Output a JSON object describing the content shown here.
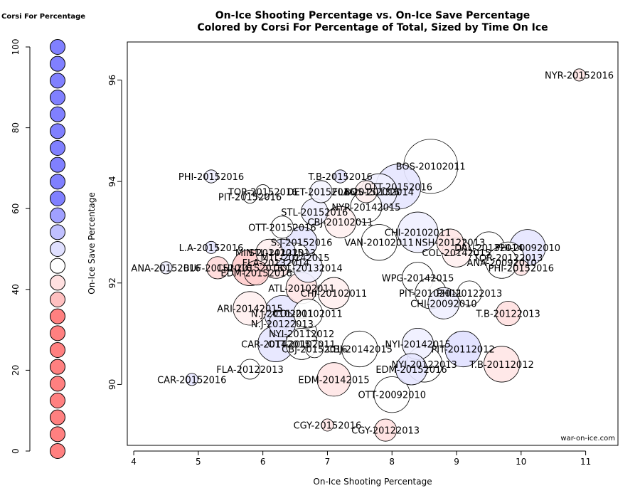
{
  "chart_data": {
    "type": "scatter",
    "title_line1": "On-Ice Shooting Percentage vs. On-Ice Save Percentage",
    "title_line2": "Colored by Corsi For Percentage of Total, Sized by Time On Ice",
    "xlabel": "On-Ice Shooting Percentage",
    "ylabel": "On-Ice Save Percentage",
    "xlim": [
      3.9,
      11.5
    ],
    "ylim": [
      88.8,
      96.75
    ],
    "xticks": [
      "4",
      "5",
      "6",
      "7",
      "8",
      "9",
      "10",
      "11"
    ],
    "yticks": [
      "90",
      "92",
      "94",
      "96"
    ],
    "credit": "war-on-ice.com",
    "legend": {
      "title": "Corsi For Percentage",
      "ticks": [
        "0",
        "20",
        "40",
        "60",
        "80",
        "100"
      ],
      "colors": [
        "#ff8080",
        "#ff8080",
        "#ff8080",
        "#ff8080",
        "#ff8080",
        "#ff8080",
        "#ff8080",
        "#ff8080",
        "#ff8080",
        "#ffc0c0",
        "#ffe0e0",
        "#ffffff",
        "#e0e0ff",
        "#c0c0ff",
        "#a0a0ff",
        "#8080ff",
        "#8080ff",
        "#8080ff",
        "#8080ff",
        "#8080ff",
        "#8080ff",
        "#8080ff",
        "#8080ff",
        "#8080ff",
        "#8080ff"
      ]
    },
    "points": [
      {
        "label": "NYR-20152016",
        "x": 10.9,
        "y": 96.1,
        "size": 0.08,
        "color": "#ffe6e6"
      },
      {
        "label": "BOS-20102011",
        "x": 8.6,
        "y": 94.3,
        "size": 1.0,
        "color": "#ffffff"
      },
      {
        "label": "OTT-20152016",
        "x": 8.1,
        "y": 93.9,
        "size": 0.8,
        "color": "#e6e6ff"
      },
      {
        "label": "BOS-20132014",
        "x": 7.8,
        "y": 93.8,
        "size": 0.6,
        "color": "#f0f0ff"
      },
      {
        "label": "PHI-20152016",
        "x": 5.2,
        "y": 94.1,
        "size": 0.1,
        "color": "#f0f0ff"
      },
      {
        "label": "T.B-20152016",
        "x": 7.2,
        "y": 94.1,
        "size": 0.1,
        "color": "#e6e6ff"
      },
      {
        "label": "TOR-20152016",
        "x": 6.0,
        "y": 93.8,
        "size": 0.12,
        "color": "#ffffff"
      },
      {
        "label": "DET-20152016",
        "x": 6.9,
        "y": 93.8,
        "size": 0.3,
        "color": "#f5f5ff"
      },
      {
        "label": "FLA-20152016",
        "x": 7.6,
        "y": 93.8,
        "size": 0.3,
        "color": "#fff0f0"
      },
      {
        "label": "PIT-20152016",
        "x": 5.8,
        "y": 93.7,
        "size": 0.1,
        "color": "#ffffff"
      },
      {
        "label": "NYR-20142015",
        "x": 7.6,
        "y": 93.5,
        "size": 0.5,
        "color": "#ffffff"
      },
      {
        "label": "STL-20152016",
        "x": 6.8,
        "y": 93.4,
        "size": 0.4,
        "color": "#f0f0ff"
      },
      {
        "label": "OTT-20152016",
        "x": 6.3,
        "y": 93.1,
        "size": 0.3,
        "color": "#ffffff"
      },
      {
        "label": "CBJ-20102011",
        "x": 7.2,
        "y": 93.2,
        "size": 0.5,
        "color": "#fff0f0"
      },
      {
        "label": "CHI-20102011",
        "x": 8.4,
        "y": 93.0,
        "size": 0.7,
        "color": "#f0f0ff"
      },
      {
        "label": "VAN-20102011",
        "x": 7.8,
        "y": 92.8,
        "size": 0.6,
        "color": "#ffffff"
      },
      {
        "label": "S.J-20152016",
        "x": 6.6,
        "y": 92.8,
        "size": 0.5,
        "color": "#e6e6ff"
      },
      {
        "label": "STL-20122013",
        "x": 6.3,
        "y": 92.6,
        "size": 0.4,
        "color": "#e6e6ff"
      },
      {
        "label": "MTL-20142015",
        "x": 6.5,
        "y": 92.5,
        "size": 0.45,
        "color": "#ffffff"
      },
      {
        "label": "NSH-20122013",
        "x": 8.9,
        "y": 92.8,
        "size": 0.4,
        "color": "#ffe6e6"
      },
      {
        "label": "COL-20142015",
        "x": 9.0,
        "y": 92.6,
        "size": 0.45,
        "color": "#fff0f0"
      },
      {
        "label": "FLA-20132014",
        "x": 6.2,
        "y": 92.4,
        "size": 0.5,
        "color": "#ffe6e6"
      },
      {
        "label": "L.A-20152016",
        "x": 5.2,
        "y": 92.7,
        "size": 0.08,
        "color": "#e6e6ff"
      },
      {
        "label": "MIN-20142015",
        "x": 6.1,
        "y": 92.6,
        "size": 0.4,
        "color": "#fff0f0"
      },
      {
        "label": "COL-20132014",
        "x": 6.7,
        "y": 92.3,
        "size": 0.45,
        "color": "#f0f0ff"
      },
      {
        "label": "DAL-20132014",
        "x": 9.5,
        "y": 92.7,
        "size": 0.5,
        "color": "#ffffff"
      },
      {
        "label": "PHI-20092010",
        "x": 10.1,
        "y": 92.7,
        "size": 0.6,
        "color": "#e6e6ff"
      },
      {
        "label": "TOR-20122013",
        "x": 9.8,
        "y": 92.5,
        "size": 0.5,
        "color": "#ffffff"
      },
      {
        "label": "ANA-20092010",
        "x": 9.7,
        "y": 92.4,
        "size": 0.5,
        "color": "#ffffff"
      },
      {
        "label": "PHI-20152016",
        "x": 10.0,
        "y": 92.3,
        "size": 0.15,
        "color": "#ffe6e6"
      },
      {
        "label": "ANA-20152016",
        "x": 4.5,
        "y": 92.3,
        "size": 0.08,
        "color": "#f0f0ff"
      },
      {
        "label": "BUF-20152016",
        "x": 5.3,
        "y": 92.3,
        "size": 0.3,
        "color": "#ffd9d9"
      },
      {
        "label": "EDM-20152016",
        "x": 5.9,
        "y": 92.2,
        "size": 0.35,
        "color": "#ffd0d0"
      },
      {
        "label": "CHI-20152016",
        "x": 5.8,
        "y": 92.3,
        "size": 0.6,
        "color": "#ffcccc"
      },
      {
        "label": "WPG-20142015",
        "x": 8.4,
        "y": 92.1,
        "size": 0.5,
        "color": "#ffffff"
      },
      {
        "label": "ATL-20102011",
        "x": 6.6,
        "y": 91.9,
        "size": 0.5,
        "color": "#ffe6e6"
      },
      {
        "label": "CHI-20102011",
        "x": 7.1,
        "y": 91.8,
        "size": 0.5,
        "color": "#fff0f0"
      },
      {
        "label": "PIT-20102011",
        "x": 8.6,
        "y": 91.8,
        "size": 0.5,
        "color": "#ffffff"
      },
      {
        "label": "PHI-20122013",
        "x": 9.2,
        "y": 91.8,
        "size": 0.35,
        "color": "#ffffff"
      },
      {
        "label": "CHI-20092010",
        "x": 8.8,
        "y": 91.6,
        "size": 0.5,
        "color": "#f0f0ff"
      },
      {
        "label": "T.B-20122013",
        "x": 9.8,
        "y": 91.4,
        "size": 0.35,
        "color": "#ffe0e0"
      },
      {
        "label": "ARI-20142015",
        "x": 5.8,
        "y": 91.5,
        "size": 0.55,
        "color": "#fff0f0"
      },
      {
        "label": "N.J-20102011",
        "x": 6.3,
        "y": 91.4,
        "size": 0.6,
        "color": "#e6e6ff"
      },
      {
        "label": "COL-20102011",
        "x": 6.7,
        "y": 91.4,
        "size": 0.45,
        "color": "#ffffff"
      },
      {
        "label": "N.J-20122013",
        "x": 6.3,
        "y": 91.2,
        "size": 0.4,
        "color": "#e6e6ff"
      },
      {
        "label": "NYI-20112012",
        "x": 6.6,
        "y": 91.0,
        "size": 0.5,
        "color": "#ffffff"
      },
      {
        "label": "CAR-20142015",
        "x": 6.2,
        "y": 90.8,
        "size": 0.6,
        "color": "#e6e6ff"
      },
      {
        "label": "OTT-20102011",
        "x": 6.6,
        "y": 90.8,
        "size": 0.5,
        "color": "#ffffff"
      },
      {
        "label": "CBJ-20152016",
        "x": 6.8,
        "y": 90.7,
        "size": 0.2,
        "color": "#ffffff"
      },
      {
        "label": "CBJ-20142015",
        "x": 7.5,
        "y": 90.7,
        "size": 0.6,
        "color": "#ffffff"
      },
      {
        "label": "NYI-20142015",
        "x": 8.4,
        "y": 90.8,
        "size": 0.5,
        "color": "#f0f0ff"
      },
      {
        "label": "PIT-20112012",
        "x": 9.1,
        "y": 90.7,
        "size": 0.6,
        "color": "#e0e0ff"
      },
      {
        "label": "NYI-20122013",
        "x": 8.5,
        "y": 90.4,
        "size": 0.6,
        "color": "#ffffff"
      },
      {
        "label": "T.B-20112012",
        "x": 9.7,
        "y": 90.4,
        "size": 0.6,
        "color": "#ffe6e6"
      },
      {
        "label": "EDM-20152016",
        "x": 8.3,
        "y": 90.3,
        "size": 0.5,
        "color": "#e6e6ff"
      },
      {
        "label": "FLA-20122013",
        "x": 5.8,
        "y": 90.3,
        "size": 0.25,
        "color": "#ffffff"
      },
      {
        "label": "EDM-20142015",
        "x": 7.1,
        "y": 90.1,
        "size": 0.55,
        "color": "#ffe6e6"
      },
      {
        "label": "CAR-20152016",
        "x": 4.9,
        "y": 90.1,
        "size": 0.08,
        "color": "#e6e6ff"
      },
      {
        "label": "OTT-20092010",
        "x": 8.0,
        "y": 89.8,
        "size": 0.6,
        "color": "#ffffff"
      },
      {
        "label": "CGY-20152016",
        "x": 7.0,
        "y": 89.2,
        "size": 0.08,
        "color": "#ffe6e6"
      },
      {
        "label": "CGY-20122013",
        "x": 7.9,
        "y": 89.1,
        "size": 0.3,
        "color": "#ffe0e0"
      }
    ]
  }
}
